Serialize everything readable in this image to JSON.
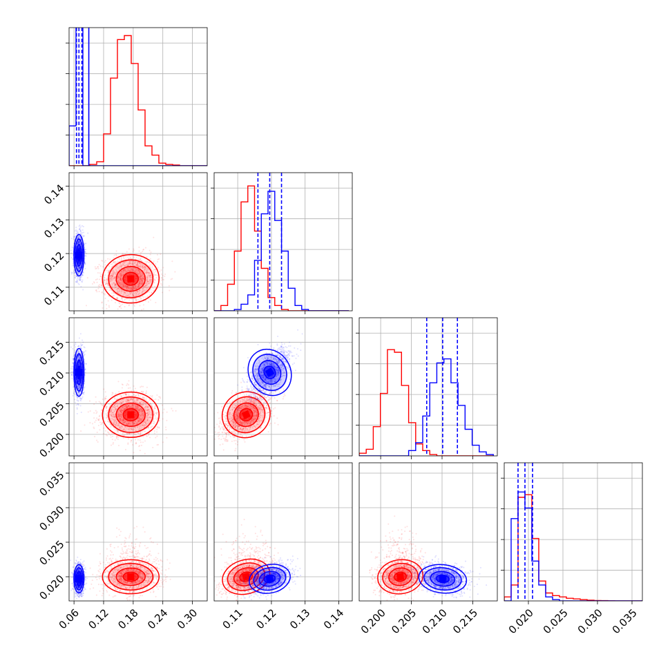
{
  "chart_data": {
    "type": "corner",
    "parameters": [
      {
        "ticks": [
          0.06,
          0.12,
          0.18,
          0.24,
          0.3
        ],
        "tick_labels": [
          "0.06",
          "0.12",
          "0.18",
          "0.24",
          "0.30"
        ],
        "range": [
          0.05,
          0.33
        ]
      },
      {
        "ticks": [
          0.11,
          0.12,
          0.13,
          0.14
        ],
        "tick_labels": [
          "0.11",
          "0.12",
          "0.13",
          "0.14"
        ],
        "range": [
          0.103,
          0.144
        ]
      },
      {
        "ticks": [
          0.2,
          0.205,
          0.21,
          0.215
        ],
        "tick_labels": [
          "0.200",
          "0.205",
          "0.210",
          "0.215"
        ],
        "range": [
          0.1965,
          0.219
        ]
      },
      {
        "ticks": [
          0.02,
          0.025,
          0.03,
          0.035
        ],
        "tick_labels": [
          "0.020",
          "0.025",
          "0.030",
          "0.035"
        ],
        "range": [
          0.0165,
          0.0365
        ]
      }
    ],
    "series": [
      {
        "color": "#ff0000",
        "means": [
          0.175,
          0.1125,
          0.2032,
          0.02
        ],
        "sigmas": [
          0.028,
          0.0035,
          0.0018,
          0.0012
        ]
      },
      {
        "color": "#0000ff",
        "means": [
          0.07,
          0.1195,
          0.2101,
          0.0197
        ],
        "sigmas": [
          0.005,
          0.003,
          0.0019,
          0.001
        ]
      }
    ],
    "quantiles": [
      [
        0.065,
        0.07,
        0.076
      ],
      [
        0.116,
        0.1195,
        0.123
      ],
      [
        0.2075,
        0.2101,
        0.2125
      ],
      [
        0.0185,
        0.0195,
        0.0206
      ]
    ],
    "histograms": [
      {
        "edges": [
          0.05,
          0.064,
          0.078,
          0.092,
          0.106,
          0.12,
          0.134,
          0.148,
          0.162,
          0.176,
          0.19,
          0.204,
          0.218,
          0.232,
          0.246,
          0.26,
          0.274,
          0.288,
          0.302,
          0.316,
          0.33
        ],
        "red": [
          0,
          0,
          0,
          0.01,
          0.03,
          0.24,
          0.66,
          0.95,
          0.98,
          0.77,
          0.42,
          0.15,
          0.08,
          0.02,
          0.01,
          0.005,
          0,
          0,
          0,
          0
        ],
        "blue": [
          0.3,
          7.4,
          0,
          0,
          0,
          0,
          0,
          0,
          0,
          0,
          0,
          0,
          0,
          0,
          0,
          0,
          0,
          0,
          0,
          0
        ]
      },
      {
        "edges": [
          0.103,
          0.105,
          0.107,
          0.109,
          0.111,
          0.113,
          0.115,
          0.117,
          0.119,
          0.121,
          0.123,
          0.125,
          0.127,
          0.129,
          0.131,
          0.133,
          0.135,
          0.137,
          0.139,
          0.141,
          0.143
        ],
        "red": [
          0,
          0.04,
          0.2,
          0.45,
          0.82,
          0.94,
          0.6,
          0.32,
          0.1,
          0.04,
          0.01,
          0,
          0,
          0,
          0,
          0,
          0,
          0,
          0,
          0
        ],
        "blue": [
          0,
          0,
          0,
          0.01,
          0.05,
          0.12,
          0.38,
          0.73,
          0.9,
          0.68,
          0.45,
          0.17,
          0.04,
          0.01,
          0,
          0,
          0,
          0,
          0,
          0
        ]
      },
      {
        "edges": [
          0.1965,
          0.19765,
          0.1988,
          0.19995,
          0.2011,
          0.20225,
          0.2034,
          0.20455,
          0.2057,
          0.20685,
          0.208,
          0.20915,
          0.2103,
          0.21145,
          0.2126,
          0.21375,
          0.2149,
          0.21605,
          0.2172,
          0.21835
        ],
        "red": [
          0.02,
          0.05,
          0.22,
          0.47,
          0.8,
          0.78,
          0.53,
          0.25,
          0.09,
          0.04,
          0.01,
          0,
          0,
          0,
          0,
          0,
          0,
          0,
          0
        ],
        "blue": [
          0,
          0,
          0,
          0,
          0,
          0,
          0,
          0.04,
          0.1,
          0.3,
          0.55,
          0.7,
          0.73,
          0.55,
          0.38,
          0.2,
          0.08,
          0.03,
          0.01
        ]
      },
      {
        "edges": [
          0.0165,
          0.0175,
          0.0185,
          0.0195,
          0.0205,
          0.0215,
          0.0225,
          0.0235,
          0.0245,
          0.0255,
          0.0265,
          0.0275,
          0.0285,
          0.0295,
          0.0305,
          0.0315,
          0.0325,
          0.0335,
          0.0345,
          0.0355,
          0.0365
        ],
        "red": [
          0.03,
          0.12,
          0.78,
          0.8,
          0.47,
          0.15,
          0.06,
          0.04,
          0.03,
          0.02,
          0.015,
          0.01,
          0.005,
          0.003,
          0.002,
          0.001,
          0,
          0,
          0,
          0
        ],
        "blue": [
          0,
          0.62,
          0.82,
          0.7,
          0.3,
          0.12,
          0.03,
          0.01,
          0,
          0,
          0,
          0,
          0,
          0,
          0,
          0,
          0,
          0,
          0,
          0
        ]
      }
    ],
    "grid": true,
    "legend": "none"
  }
}
